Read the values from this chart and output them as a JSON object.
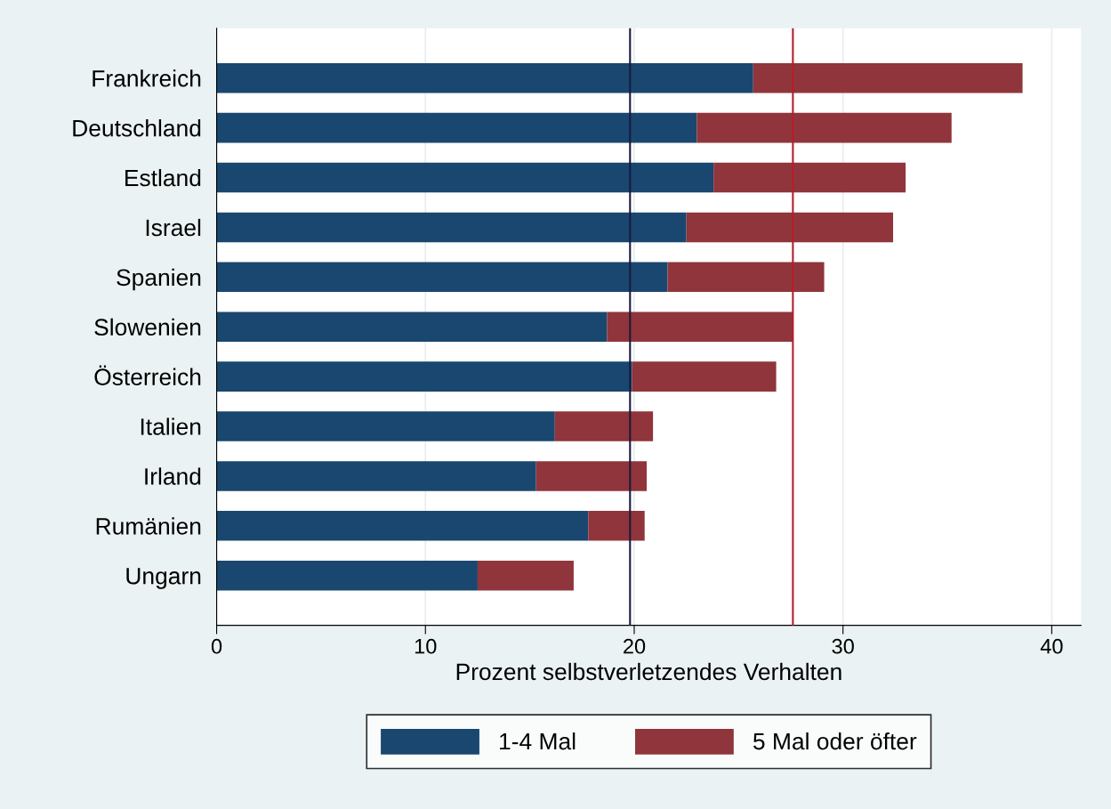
{
  "chart_data": {
    "type": "bar",
    "orientation": "horizontal",
    "stacked": true,
    "categories": [
      "Frankreich",
      "Deutschland",
      "Estland",
      "Israel",
      "Spanien",
      "Slowenien",
      "Österreich",
      "Italien",
      "Irland",
      "Rumänien",
      "Ungarn"
    ],
    "series": [
      {
        "name": "1-4 Mal",
        "color": "#1a476f",
        "values": [
          25.7,
          23.0,
          23.8,
          22.5,
          21.6,
          18.7,
          19.9,
          16.2,
          15.3,
          17.8,
          12.5
        ]
      },
      {
        "name": "5 Mal oder öfter",
        "color": "#90353b",
        "values": [
          12.9,
          12.2,
          9.2,
          9.9,
          7.5,
          8.9,
          6.9,
          4.7,
          5.3,
          2.7,
          4.6
        ]
      }
    ],
    "xlabel": "Prozent selbstverletzendes Verhalten",
    "xlim": [
      0,
      41.4
    ],
    "xticks": [
      0,
      10,
      20,
      30,
      40
    ],
    "ref_lines": [
      {
        "axis": "x",
        "value": 19.8,
        "color": "#1a1a40"
      },
      {
        "axis": "x",
        "value": 27.6,
        "color": "#b41e2e"
      }
    ],
    "grid": "x",
    "legend": "bottom"
  }
}
